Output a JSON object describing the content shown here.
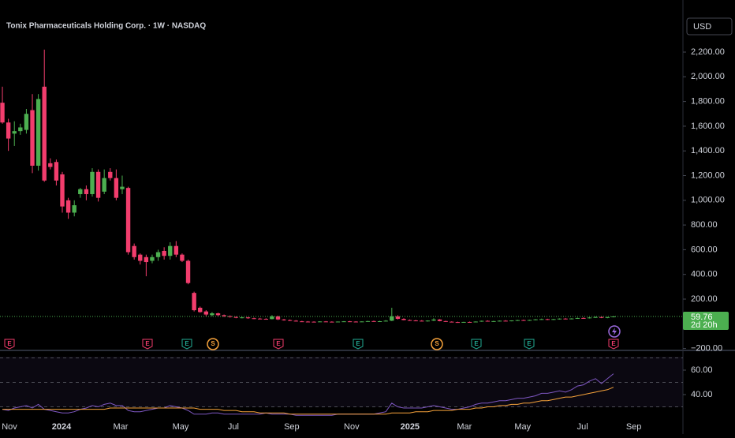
{
  "chart_data": {
    "type": "candlestick",
    "title": "Tonix Pharmaceuticals Holding Corp. · 1W · NASDAQ",
    "currency": "USD",
    "up_color": "#4caf50",
    "down_color": "#f23d6d",
    "x": [
      0,
      1,
      2,
      3,
      4,
      5,
      6,
      7,
      8,
      9,
      10,
      11,
      12,
      13,
      14,
      15,
      16,
      17,
      18,
      19,
      20,
      21,
      22,
      23,
      24,
      25,
      26,
      27,
      28,
      29,
      30,
      31,
      32,
      33,
      34,
      35,
      36,
      37,
      38,
      39,
      40,
      41,
      42,
      43,
      44,
      45,
      46,
      47,
      48,
      49,
      50,
      51,
      52,
      53,
      54,
      55,
      56,
      57,
      58,
      59,
      60,
      61,
      62,
      63,
      64,
      65,
      66,
      67,
      68,
      69,
      70,
      71,
      72,
      73,
      74,
      75,
      76,
      77,
      78,
      79,
      80,
      81,
      82,
      83,
      84,
      85,
      86,
      87,
      88,
      89,
      90,
      91,
      92,
      93,
      94,
      95,
      96,
      97,
      98,
      99,
      100,
      101,
      102
    ],
    "open": [
      1790,
      1630,
      1540,
      1560,
      1570,
      1730,
      1280,
      1920,
      1300,
      1310,
      1210,
      1000,
      900,
      1050,
      1090,
      1050,
      1230,
      1070,
      1230,
      1180,
      1090,
      1100,
      630,
      560,
      540,
      510,
      540,
      590,
      550,
      630,
      560,
      510,
      250,
      130,
      100,
      70,
      85,
      70,
      62,
      55,
      50,
      52,
      45,
      42,
      40,
      38,
      60,
      35,
      30,
      25,
      20,
      18,
      17,
      16,
      19,
      17,
      16,
      18,
      20,
      18,
      17,
      19,
      22,
      20,
      21,
      25,
      60,
      40,
      30,
      27,
      25,
      22,
      26,
      35,
      22,
      17,
      14,
      12,
      15,
      13,
      18,
      24,
      20,
      22,
      25,
      23,
      27,
      30,
      28,
      31,
      36,
      38,
      33,
      38,
      42,
      39,
      43,
      47,
      45,
      51,
      55,
      48,
      54
    ],
    "high": [
      1920,
      1660,
      1640,
      1620,
      1740,
      1860,
      1860,
      2220,
      1340,
      1330,
      1230,
      1020,
      1000,
      1100,
      1120,
      1260,
      1250,
      1250,
      1260,
      1250,
      1200,
      1110,
      650,
      570,
      560,
      560,
      600,
      620,
      660,
      670,
      570,
      520,
      260,
      140,
      110,
      95,
      90,
      75,
      68,
      60,
      58,
      55,
      50,
      48,
      45,
      70,
      65,
      40,
      35,
      30,
      24,
      22,
      20,
      21,
      22,
      20,
      19,
      22,
      23,
      21,
      20,
      24,
      26,
      24,
      30,
      130,
      70,
      45,
      35,
      32,
      30,
      28,
      45,
      38,
      25,
      20,
      17,
      16,
      18,
      20,
      26,
      28,
      24,
      27,
      30,
      28,
      32,
      34,
      33,
      38,
      42,
      41,
      40,
      44,
      46,
      45,
      50,
      52,
      53,
      58,
      60,
      56,
      62
    ],
    "low": [
      1620,
      1400,
      1440,
      1530,
      1540,
      1220,
      1240,
      1150,
      1250,
      1120,
      900,
      850,
      870,
      1020,
      1000,
      1030,
      990,
      1050,
      1160,
      1000,
      1050,
      560,
      520,
      480,
      385,
      490,
      510,
      520,
      520,
      540,
      500,
      320,
      100,
      90,
      60,
      60,
      60,
      55,
      50,
      45,
      44,
      40,
      38,
      36,
      35,
      36,
      30,
      25,
      22,
      18,
      15,
      14,
      13,
      14,
      15,
      14,
      13,
      15,
      16,
      15,
      14,
      17,
      18,
      17,
      18,
      22,
      35,
      28,
      24,
      22,
      20,
      18,
      22,
      20,
      15,
      12,
      10,
      10,
      11,
      12,
      16,
      18,
      16,
      19,
      21,
      20,
      23,
      25,
      24,
      28,
      32,
      30,
      31,
      34,
      36,
      36,
      40,
      42,
      43,
      47,
      46,
      45,
      52
    ],
    "close": [
      1630,
      1500,
      1560,
      1590,
      1700,
      1280,
      1820,
      1160,
      1270,
      1160,
      950,
      900,
      960,
      1090,
      1050,
      1230,
      1020,
      1180,
      1180,
      1020,
      1110,
      580,
      540,
      510,
      500,
      540,
      580,
      550,
      630,
      560,
      510,
      330,
      110,
      95,
      75,
      85,
      70,
      62,
      55,
      50,
      52,
      45,
      42,
      40,
      38,
      60,
      35,
      30,
      25,
      20,
      18,
      17,
      16,
      19,
      17,
      16,
      18,
      20,
      18,
      17,
      19,
      22,
      20,
      21,
      25,
      60,
      40,
      30,
      27,
      25,
      22,
      26,
      35,
      22,
      17,
      14,
      12,
      15,
      13,
      18,
      24,
      20,
      22,
      25,
      23,
      27,
      30,
      28,
      31,
      36,
      38,
      33,
      38,
      42,
      39,
      43,
      47,
      45,
      51,
      55,
      48,
      54,
      59.76
    ],
    "last_price": 59.76,
    "countdown": "2d 20h",
    "xlim": [
      -0.4,
      113.6
    ],
    "xticks": [
      {
        "value": 1.18,
        "label": "Nov"
      },
      {
        "value": 9.87,
        "label": "2024"
      },
      {
        "value": 19.74,
        "label": "Mar"
      },
      {
        "value": 29.74,
        "label": "May"
      },
      {
        "value": 38.55,
        "label": "Jul"
      },
      {
        "value": 48.29,
        "label": "Sep"
      },
      {
        "value": 58.29,
        "label": "Nov"
      },
      {
        "value": 68.03,
        "label": "2025"
      },
      {
        "value": 77.11,
        "label": "Mar"
      },
      {
        "value": 86.84,
        "label": "May"
      },
      {
        "value": 96.84,
        "label": "Jul"
      },
      {
        "value": 105.39,
        "label": "Sep"
      }
    ],
    "ylim": [
      -209,
      2494
    ],
    "yticks": [
      {
        "value": -200,
        "label": "−200.00"
      },
      {
        "value": 200,
        "label": "200.00"
      },
      {
        "value": 400,
        "label": "400.00"
      },
      {
        "value": 600,
        "label": "600.00"
      },
      {
        "value": 800,
        "label": "800.00"
      },
      {
        "value": 1000,
        "label": "1,000.00"
      },
      {
        "value": 1200,
        "label": "1,200.00"
      },
      {
        "value": 1400,
        "label": "1,400.00"
      },
      {
        "value": 1600,
        "label": "1,600.00"
      },
      {
        "value": 1800,
        "label": "1,800.00"
      },
      {
        "value": 2000,
        "label": "2,000.00"
      },
      {
        "value": 2200,
        "label": "2,200.00"
      }
    ],
    "grid": false,
    "events": [
      {
        "label": "E",
        "color": "#f23d6d"
      },
      {
        "label": "E",
        "color": "#f23d6d"
      },
      {
        "label": "E",
        "color": "#22ab94"
      },
      {
        "label": "S",
        "color": "#f7a33b"
      },
      {
        "label": "E",
        "color": "#f23d6d"
      },
      {
        "label": "E",
        "color": "#22ab94"
      },
      {
        "label": "S",
        "color": "#f7a33b"
      },
      {
        "label": "E",
        "color": "#22ab94"
      },
      {
        "label": "E",
        "color": "#22ab94"
      },
      {
        "label": "E",
        "color": "#f23d6d"
      }
    ],
    "rsi": {
      "type": "line",
      "ylim": [
        9,
        74.2
      ],
      "yticks": [
        {
          "value": 40,
          "label": "40.00"
        },
        {
          "value": 60,
          "label": "60.00"
        }
      ],
      "bands": [
        30,
        50,
        70
      ],
      "series": [
        {
          "color": "#7e57c2",
          "values": [
            28,
            27,
            29,
            30,
            31,
            29,
            32,
            28,
            27,
            26,
            25,
            25,
            26,
            28,
            29,
            31,
            30,
            32,
            33,
            31,
            31,
            27,
            26,
            26,
            27,
            28,
            29,
            29,
            31,
            30,
            29,
            27,
            24,
            24,
            24,
            25,
            25,
            24,
            24,
            24,
            24,
            24,
            24,
            24,
            25,
            24,
            24,
            24,
            24,
            23,
            23,
            23,
            23,
            23,
            23,
            23,
            24,
            24,
            24,
            24,
            24,
            24,
            24,
            25,
            26,
            33,
            30,
            29,
            29,
            29,
            29,
            30,
            31,
            30,
            29,
            28,
            28,
            29,
            30,
            32,
            33,
            33,
            34,
            35,
            35,
            36,
            37,
            37,
            38,
            39,
            41,
            41,
            42,
            43,
            42,
            44,
            47,
            48,
            51,
            53,
            49,
            53,
            57
          ]
        },
        {
          "color": "#f7a33b",
          "values": [
            28,
            28,
            28,
            28,
            28,
            28,
            28,
            28,
            28,
            28,
            28,
            28,
            28,
            28,
            28,
            28,
            28,
            28,
            29,
            29,
            29,
            29,
            29,
            29,
            29,
            29,
            29,
            29,
            29,
            29,
            29,
            29,
            29,
            28,
            28,
            28,
            28,
            27,
            27,
            27,
            26,
            26,
            26,
            25,
            25,
            25,
            25,
            25,
            24,
            24,
            24,
            24,
            24,
            24,
            24,
            24,
            24,
            24,
            24,
            24,
            24,
            24,
            24,
            24,
            24,
            25,
            25,
            25,
            25,
            26,
            26,
            26,
            27,
            27,
            27,
            27,
            28,
            28,
            28,
            29,
            29,
            30,
            30,
            31,
            31,
            32,
            32,
            33,
            33,
            34,
            35,
            35,
            36,
            37,
            38,
            38,
            39,
            40,
            41,
            42,
            43,
            44,
            46
          ]
        }
      ]
    }
  }
}
